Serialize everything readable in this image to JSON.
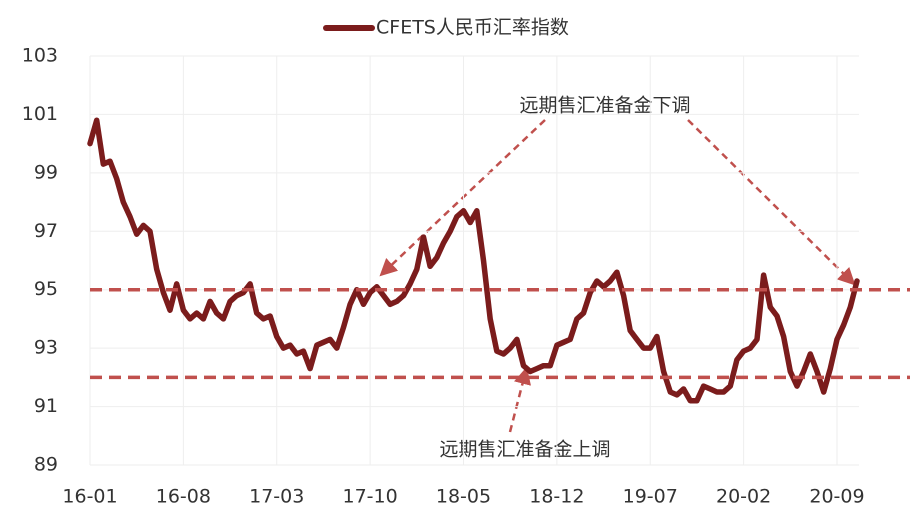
{
  "chart_data": {
    "type": "line",
    "legend_label": "CFETS人民币汇率指数",
    "annotations": [
      "远期售汇准备金下调",
      "远期售汇准备金上调"
    ],
    "categories": [
      "16-01",
      null,
      null,
      null,
      null,
      null,
      null,
      null,
      null,
      null,
      null,
      null,
      null,
      null,
      "16-08",
      null,
      null,
      null,
      null,
      null,
      null,
      null,
      null,
      null,
      null,
      null,
      null,
      null,
      "17-03",
      null,
      null,
      null,
      null,
      null,
      null,
      null,
      null,
      null,
      null,
      null,
      null,
      null,
      "17-10",
      null,
      null,
      null,
      null,
      null,
      null,
      null,
      null,
      null,
      null,
      null,
      null,
      null,
      "18-05",
      null,
      null,
      null,
      null,
      null,
      null,
      null,
      null,
      null,
      null,
      null,
      null,
      null,
      "18-12",
      null,
      null,
      null,
      null,
      null,
      null,
      null,
      null,
      null,
      null,
      null,
      null,
      null,
      "19-07",
      null,
      null,
      null,
      null,
      null,
      null,
      null,
      null,
      null,
      null,
      null,
      null,
      null,
      "20-02",
      null,
      null,
      null,
      null,
      null,
      null,
      null,
      null,
      null,
      null,
      null,
      null,
      null,
      "20-09",
      null,
      null,
      null
    ],
    "values": [
      100.0,
      100.8,
      99.3,
      99.4,
      98.8,
      98.0,
      97.5,
      96.9,
      97.2,
      97.0,
      95.7,
      94.9,
      94.3,
      95.2,
      94.3,
      94.0,
      94.2,
      94.0,
      94.6,
      94.2,
      94.0,
      94.6,
      94.8,
      94.9,
      95.2,
      94.2,
      94.0,
      94.1,
      93.4,
      93.0,
      93.1,
      92.8,
      92.9,
      92.3,
      93.1,
      93.2,
      93.3,
      93.0,
      93.7,
      94.5,
      95.0,
      94.5,
      94.9,
      95.1,
      94.8,
      94.5,
      94.6,
      94.8,
      95.2,
      95.7,
      96.8,
      95.8,
      96.1,
      96.6,
      97.0,
      97.5,
      97.7,
      97.3,
      97.7,
      96.0,
      94.0,
      92.9,
      92.8,
      93.0,
      93.3,
      92.4,
      92.2,
      92.3,
      92.4,
      92.4,
      93.1,
      93.2,
      93.3,
      94.0,
      94.2,
      94.9,
      95.3,
      95.1,
      95.3,
      95.6,
      94.8,
      93.6,
      93.3,
      93.0,
      93.0,
      93.4,
      92.2,
      91.5,
      91.4,
      91.6,
      91.2,
      91.2,
      91.7,
      91.6,
      91.5,
      91.5,
      91.7,
      92.6,
      92.9,
      93.0,
      93.3,
      95.5,
      94.4,
      94.1,
      93.4,
      92.2,
      91.7,
      92.2,
      92.8,
      92.2,
      91.5,
      92.3,
      93.3,
      93.8,
      94.4,
      95.3
    ],
    "color": "#7b1c1c",
    "reference_lines": [
      95,
      92
    ],
    "reference_color": "#c0504d",
    "ylim": [
      89,
      103
    ],
    "yticks": [
      89,
      91,
      93,
      95,
      97,
      99,
      101,
      103
    ],
    "grid": true
  }
}
